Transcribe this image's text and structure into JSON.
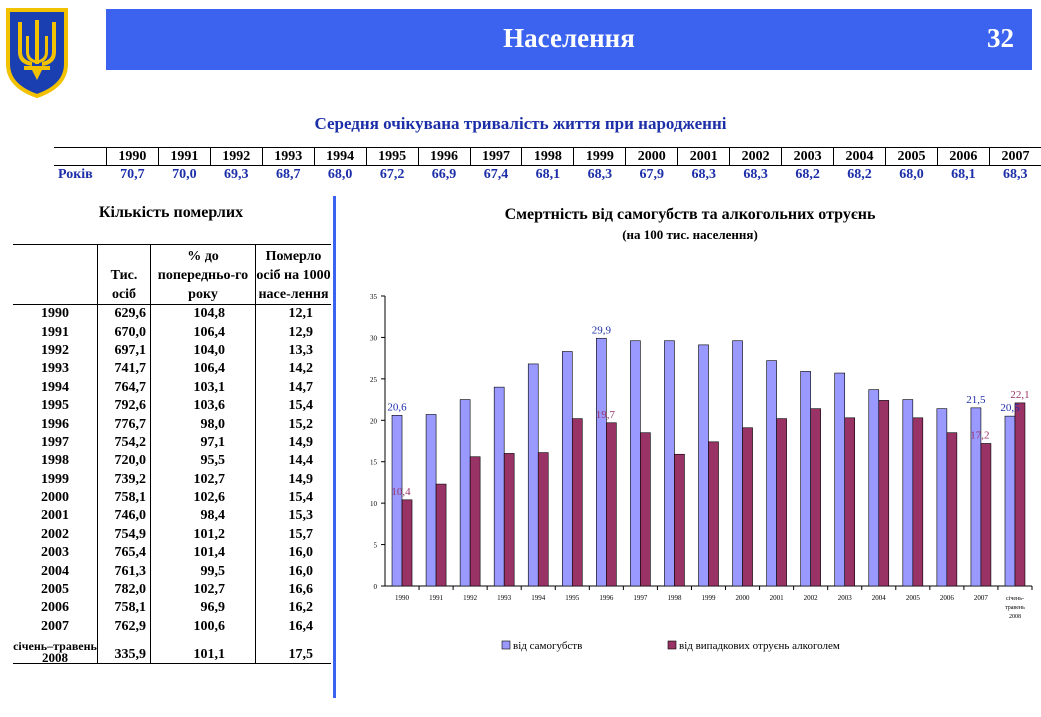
{
  "header": {
    "title": "Населення",
    "page_number": "32"
  },
  "life_expectancy": {
    "title": "Середня очікувана тривалість життя при народженні",
    "row_label": "Років",
    "years": [
      "1990",
      "1991",
      "1992",
      "1993",
      "1994",
      "1995",
      "1996",
      "1997",
      "1998",
      "1999",
      "2000",
      "2001",
      "2002",
      "2003",
      "2004",
      "2005",
      "2006",
      "2007"
    ],
    "values": [
      "70,7",
      "70,0",
      "69,3",
      "68,7",
      "68,0",
      "67,2",
      "66,9",
      "67,4",
      "68,1",
      "68,3",
      "67,9",
      "68,3",
      "68,3",
      "68,2",
      "68,2",
      "68,0",
      "68,1",
      "68,3"
    ]
  },
  "deaths_table": {
    "title": "Кількість померлих",
    "headers": [
      "",
      "Тис. осіб",
      "% до попередньо-го року",
      "Померло осіб на 1000 насе-лення"
    ],
    "rows": [
      [
        "1990",
        "629,6",
        "104,8",
        "12,1"
      ],
      [
        "1991",
        "670,0",
        "106,4",
        "12,9"
      ],
      [
        "1992",
        "697,1",
        "104,0",
        "13,3"
      ],
      [
        "1993",
        "741,7",
        "106,4",
        "14,2"
      ],
      [
        "1994",
        "764,7",
        "103,1",
        "14,7"
      ],
      [
        "1995",
        "792,6",
        "103,6",
        "15,4"
      ],
      [
        "1996",
        "776,7",
        "98,0",
        "15,2"
      ],
      [
        "1997",
        "754,2",
        "97,1",
        "14,9"
      ],
      [
        "1998",
        "720,0",
        "95,5",
        "14,4"
      ],
      [
        "1999",
        "739,2",
        "102,7",
        "14,9"
      ],
      [
        "2000",
        "758,1",
        "102,6",
        "15,4"
      ],
      [
        "2001",
        "746,0",
        "98,4",
        "15,3"
      ],
      [
        "2002",
        "754,9",
        "101,2",
        "15,7"
      ],
      [
        "2003",
        "765,4",
        "101,4",
        "16,0"
      ],
      [
        "2004",
        "761,3",
        "99,5",
        "16,0"
      ],
      [
        "2005",
        "782,0",
        "102,7",
        "16,6"
      ],
      [
        "2006",
        "758,1",
        "96,9",
        "16,2"
      ],
      [
        "2007",
        "762,9",
        "100,6",
        "16,4"
      ]
    ],
    "last_row": {
      "label_top": "січень–травень",
      "label_year": "2008",
      "values": [
        "335,9",
        "101,1",
        "17,5"
      ]
    }
  },
  "chart_data": {
    "type": "bar",
    "title": "Смертність від самогубств та алкогольних отруєнь",
    "subtitle": "(на 100 тис. населення)",
    "categories": [
      "1990",
      "1991",
      "1992",
      "1993",
      "1994",
      "1995",
      "1996",
      "1997",
      "1998",
      "1999",
      "2000",
      "2001",
      "2002",
      "2003",
      "2004",
      "2005",
      "2006",
      "2007",
      "січень-травень 2008"
    ],
    "ylim": [
      0,
      35
    ],
    "yticks": [
      0,
      5,
      10,
      15,
      20,
      25,
      30,
      35
    ],
    "legend_position": "bottom",
    "series": [
      {
        "name": "від самогубств",
        "color": "#9999ff",
        "values": [
          20.6,
          20.7,
          22.5,
          24.0,
          26.8,
          28.3,
          29.9,
          29.6,
          29.6,
          29.1,
          29.6,
          27.2,
          25.9,
          25.7,
          23.7,
          22.5,
          21.4,
          21.5,
          20.5
        ]
      },
      {
        "name": "від випадкових отруєнь алкоголем",
        "color": "#993366",
        "values": [
          10.4,
          12.3,
          15.6,
          16.0,
          16.1,
          20.2,
          19.7,
          18.5,
          15.9,
          17.4,
          19.1,
          20.2,
          21.4,
          20.3,
          22.4,
          20.3,
          18.5,
          17.2,
          22.1
        ]
      }
    ],
    "data_labels": [
      {
        "series": 0,
        "index": 0,
        "text": "20,6"
      },
      {
        "series": 1,
        "index": 0,
        "text": "10,4"
      },
      {
        "series": 0,
        "index": 6,
        "text": "29,9"
      },
      {
        "series": 1,
        "index": 6,
        "text": "19,7"
      },
      {
        "series": 0,
        "index": 17,
        "text": "21,5"
      },
      {
        "series": 1,
        "index": 17,
        "text": "17,2"
      },
      {
        "series": 0,
        "index": 18,
        "text": "20,5"
      },
      {
        "series": 1,
        "index": 18,
        "text": "22,1"
      }
    ],
    "label_colors": [
      "#1c2fa8",
      "#993366"
    ]
  }
}
